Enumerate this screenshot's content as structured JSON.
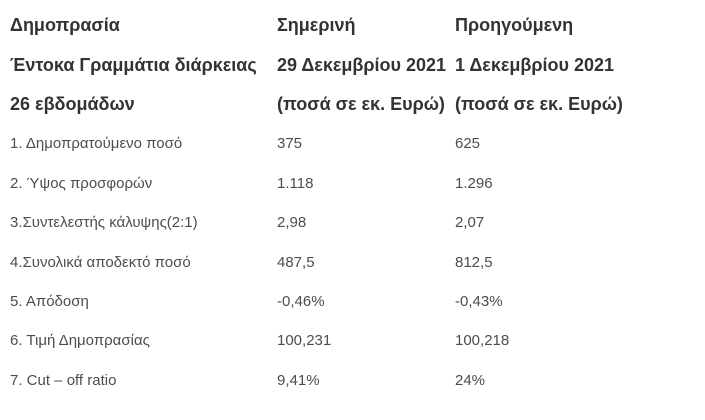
{
  "table": {
    "colors": {
      "background": "#ffffff",
      "header_text": "#333333",
      "body_text": "#4d4d4d"
    },
    "header_rows": [
      {
        "col1": "Δημοπρασία",
        "col2": "Σημερινή",
        "col3": "Προηγούμενη"
      },
      {
        "col1": "Έντοκα Γραμμάτια διάρκειας",
        "col2": "29 Δεκεμβρίου 2021",
        "col3": "1 Δεκεμβρίου 2021"
      },
      {
        "col1": "26 εβδομάδων",
        "col2": "(ποσά σε εκ. Ευρώ)",
        "col3": "(ποσά σε εκ. Ευρώ)"
      }
    ],
    "rows": [
      {
        "label": "1. Δημοπρατούμενο ποσό",
        "current": "375",
        "previous": "625"
      },
      {
        "label": "2. Ύψος προσφορών",
        "current": "1.118",
        "previous": "1.296"
      },
      {
        "label": "3.Συντελεστής κάλυψης(2:1)",
        "current": "2,98",
        "previous": "2,07"
      },
      {
        "label": "4.Συνολικά αποδεκτό ποσό",
        "current": "487,5",
        "previous": "812,5"
      },
      {
        "label": "5. Απόδοση",
        "current": "-0,46%",
        "previous": "-0,43%"
      },
      {
        "label": "6. Τιμή Δημοπρασίας",
        "current": "100,231",
        "previous": "100,218"
      },
      {
        "label": "7. Cut – off ratio",
        "current": "9,41%",
        "previous": "24%"
      }
    ]
  }
}
